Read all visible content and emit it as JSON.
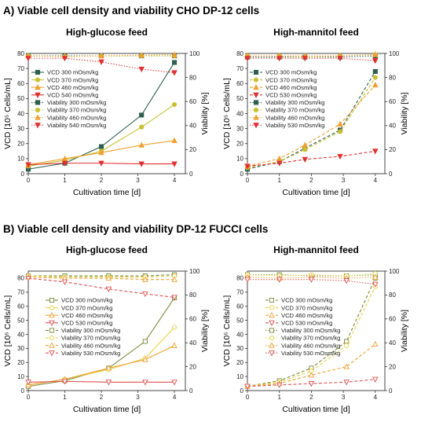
{
  "sections": [
    {
      "title": "A) Viable cell density and viability CHO DP-12 cells"
    },
    {
      "title": "B) Viable cell density and viability DP-12 FUCCI cells"
    }
  ],
  "chart_data": [
    {
      "type": "line",
      "title": "High-glucose feed",
      "xlabel": "Cultivation time [d]",
      "ylabel": "VCD [10⁵ Cells/mL]",
      "y2label": "Viability [%]",
      "xlim": [
        0,
        4.3
      ],
      "ylim": [
        0,
        80
      ],
      "y2lim": [
        0,
        100
      ],
      "xticks": [
        0,
        1,
        2,
        3,
        4
      ],
      "yticks": [
        0,
        10,
        20,
        30,
        40,
        50,
        60,
        70,
        80
      ],
      "y2ticks": [
        0,
        20,
        40,
        60,
        80,
        100
      ],
      "legend": "left",
      "series": [
        {
          "name": "VCD 300 mOsm/kg",
          "axis": "left",
          "color": "#2e5e4e",
          "marker": "square",
          "style": "solid",
          "fill": true,
          "x": [
            0,
            1,
            2,
            3.1,
            4
          ],
          "y": [
            3,
            7,
            18,
            39,
            74
          ]
        },
        {
          "name": "VCD 370 mOsm/kg",
          "axis": "left",
          "color": "#c8c030",
          "marker": "circle",
          "style": "solid",
          "fill": true,
          "x": [
            0,
            1,
            2,
            3.1,
            4
          ],
          "y": [
            5,
            9,
            15,
            31,
            46
          ]
        },
        {
          "name": "VCD 460 mOsm/kg",
          "axis": "left",
          "color": "#f0a030",
          "marker": "triangle-up",
          "style": "solid",
          "fill": true,
          "x": [
            0,
            1,
            2,
            3.1,
            4
          ],
          "y": [
            6,
            10,
            14,
            19,
            22
          ]
        },
        {
          "name": "VCD 540 mOsm/kg",
          "axis": "left",
          "color": "#e03030",
          "marker": "triangle-down",
          "style": "solid",
          "fill": true,
          "x": [
            0,
            1,
            2,
            3.1,
            4
          ],
          "y": [
            6,
            7,
            7,
            6.5,
            6.5
          ]
        },
        {
          "name": "Viability 300 mOsm/kg",
          "axis": "right",
          "color": "#2e5e4e",
          "marker": "square",
          "style": "dot",
          "fill": true,
          "x": [
            0,
            1,
            2,
            3.1,
            4
          ],
          "y": [
            98,
            98,
            98,
            98,
            98
          ]
        },
        {
          "name": "Viability 370 mOsm/kg",
          "axis": "right",
          "color": "#c8c030",
          "marker": "circle",
          "style": "dot",
          "fill": true,
          "x": [
            0,
            1,
            2,
            3.1,
            4
          ],
          "y": [
            98,
            97.5,
            98,
            98,
            98
          ]
        },
        {
          "name": "Viability 460 mOsm/kg",
          "axis": "right",
          "color": "#f0a030",
          "marker": "triangle-up",
          "style": "dot",
          "fill": true,
          "x": [
            0,
            1,
            2,
            3.1,
            4
          ],
          "y": [
            98,
            97.5,
            98,
            98.5,
            99
          ]
        },
        {
          "name": "Viability 540 mOsm/kg",
          "axis": "right",
          "color": "#e03030",
          "marker": "triangle-down",
          "style": "dot",
          "fill": true,
          "x": [
            0,
            1,
            2,
            3.1,
            4
          ],
          "y": [
            96,
            96,
            93,
            87,
            84
          ]
        }
      ]
    },
    {
      "type": "line",
      "title": "High-mannitol feed",
      "xlabel": "Cultivation time [d]",
      "ylabel": "VCD [10⁵ Cells/mL]",
      "y2label": "Viability [%]",
      "xlim": [
        0,
        4.3
      ],
      "ylim": [
        0,
        80
      ],
      "y2lim": [
        0,
        100
      ],
      "xticks": [
        0,
        1,
        2,
        3,
        4
      ],
      "yticks": [
        0,
        10,
        20,
        30,
        40,
        50,
        60,
        70,
        80
      ],
      "y2ticks": [
        0,
        20,
        40,
        60,
        80,
        100
      ],
      "legend": "left",
      "series": [
        {
          "name": "VCD 300 mOsm/kg",
          "axis": "left",
          "color": "#2e5e4e",
          "marker": "square",
          "style": "dash",
          "fill": true,
          "x": [
            0,
            1,
            1.8,
            2.9,
            4
          ],
          "y": [
            3,
            8,
            17,
            29,
            68
          ]
        },
        {
          "name": "VCD 370 mOsm/kg",
          "axis": "left",
          "color": "#c8c030",
          "marker": "circle",
          "style": "dash",
          "fill": true,
          "x": [
            0,
            1,
            1.8,
            2.9,
            4
          ],
          "y": [
            4,
            8,
            16,
            28,
            64
          ]
        },
        {
          "name": "VCD 460 mOsm/kg",
          "axis": "left",
          "color": "#f0a030",
          "marker": "triangle-up",
          "style": "dash",
          "fill": true,
          "x": [
            0,
            1,
            1.8,
            2.9,
            4
          ],
          "y": [
            5,
            10,
            19,
            33,
            59
          ]
        },
        {
          "name": "VCD 530 mOsm/kg",
          "axis": "left",
          "color": "#e03030",
          "marker": "triangle-down",
          "style": "dash",
          "fill": true,
          "x": [
            0,
            1,
            1.8,
            2.9,
            4
          ],
          "y": [
            5,
            7,
            9.5,
            11.5,
            15
          ]
        },
        {
          "name": "Viability 300 mOsm/kg",
          "axis": "right",
          "color": "#2e5e4e",
          "marker": "square",
          "style": "dot",
          "fill": true,
          "x": [
            0,
            1,
            1.8,
            2.9,
            4
          ],
          "y": [
            97,
            97,
            97,
            97,
            98
          ]
        },
        {
          "name": "Viability 370 mOsm/kg",
          "axis": "right",
          "color": "#c8c030",
          "marker": "circle",
          "style": "dot",
          "fill": true,
          "x": [
            0,
            1,
            1.8,
            2.9,
            4
          ],
          "y": [
            98,
            98,
            97,
            98,
            99
          ]
        },
        {
          "name": "Viability 460 mOsm/kg",
          "axis": "right",
          "color": "#f0a030",
          "marker": "triangle-up",
          "style": "dot",
          "fill": true,
          "x": [
            0,
            1,
            1.8,
            2.9,
            4
          ],
          "y": [
            98,
            98,
            98,
            98,
            99
          ]
        },
        {
          "name": "Viability 530 mOsm/kg",
          "axis": "right",
          "color": "#e03030",
          "marker": "triangle-down",
          "style": "dot",
          "fill": true,
          "x": [
            0,
            1,
            1.8,
            2.9,
            4
          ],
          "y": [
            96,
            96,
            96,
            96,
            94
          ]
        }
      ]
    },
    {
      "type": "line",
      "title": "High-glucose feed",
      "xlabel": "Cultivation time [d]",
      "ylabel": "VCD [10⁵ Cells/mL]",
      "y2label": "Viability [%]",
      "xlim": [
        0,
        4.3
      ],
      "ylim": [
        0,
        85
      ],
      "y2lim": [
        0,
        100
      ],
      "xticks": [
        0,
        1,
        2,
        3,
        4
      ],
      "yticks": [
        0,
        10,
        20,
        30,
        40,
        50,
        60,
        70,
        80
      ],
      "y2ticks": [
        0,
        20,
        40,
        60,
        80,
        100
      ],
      "legend": "left",
      "series": [
        {
          "name": "VCD 300 mOsm/kg",
          "axis": "left",
          "color": "#7a8a3a",
          "marker": "square",
          "style": "solid",
          "fill": false,
          "x": [
            0,
            1,
            2.2,
            3.2,
            4
          ],
          "y": [
            3,
            7,
            16,
            35,
            66
          ]
        },
        {
          "name": "VCD 370 mOsm/kg",
          "axis": "left",
          "color": "#e8d040",
          "marker": "circle",
          "style": "solid",
          "fill": false,
          "x": [
            0,
            1,
            2.2,
            3.2,
            4
          ],
          "y": [
            4,
            8,
            15,
            23,
            45
          ]
        },
        {
          "name": "VCD 460 mOsm/kg",
          "axis": "left",
          "color": "#f0a030",
          "marker": "triangle-up",
          "style": "solid",
          "fill": false,
          "x": [
            0,
            1,
            2.2,
            3.2,
            4
          ],
          "y": [
            4,
            8,
            16,
            22,
            32
          ]
        },
        {
          "name": "VCD 530 mOsm/kg",
          "axis": "left",
          "color": "#e05050",
          "marker": "triangle-down",
          "style": "solid",
          "fill": false,
          "x": [
            0,
            1,
            2.2,
            3.2,
            4
          ],
          "y": [
            6,
            6.5,
            6,
            6,
            6
          ]
        },
        {
          "name": "Viability 300 mOsm/kg",
          "axis": "right",
          "color": "#7a8a3a",
          "marker": "square",
          "style": "dash",
          "fill": false,
          "x": [
            0,
            1,
            2.2,
            3.2,
            4
          ],
          "y": [
            96,
            96,
            96,
            96,
            97
          ]
        },
        {
          "name": "Viability 370 mOsm/kg",
          "axis": "right",
          "color": "#e8d040",
          "marker": "circle",
          "style": "dash",
          "fill": false,
          "x": [
            0,
            1,
            2.2,
            3.2,
            4
          ],
          "y": [
            96,
            95,
            95,
            95,
            96
          ]
        },
        {
          "name": "Viability 460 mOsm/kg",
          "axis": "right",
          "color": "#f0a030",
          "marker": "triangle-up",
          "style": "dash",
          "fill": false,
          "x": [
            0,
            1,
            2.2,
            3.2,
            4
          ],
          "y": [
            95,
            94,
            94,
            93,
            93
          ]
        },
        {
          "name": "Viability 530 mOsm/kg",
          "axis": "right",
          "color": "#e05050",
          "marker": "triangle-down",
          "style": "dash",
          "fill": false,
          "x": [
            0,
            1,
            2.2,
            3.2,
            4
          ],
          "y": [
            94,
            91,
            85,
            81,
            78
          ]
        }
      ]
    },
    {
      "type": "line",
      "title": "High-mannitol feed",
      "xlabel": "Cultivation time [d]",
      "ylabel": "VCD [10⁵ Cells/mL]",
      "y2label": "Viability [%]",
      "xlim": [
        0,
        4.3
      ],
      "ylim": [
        0,
        85
      ],
      "y2lim": [
        0,
        100
      ],
      "xticks": [
        0,
        1,
        2,
        3,
        4
      ],
      "yticks": [
        0,
        10,
        20,
        30,
        40,
        50,
        60,
        70,
        80
      ],
      "y2ticks": [
        0,
        20,
        40,
        60,
        80,
        100
      ],
      "legend": "left",
      "series": [
        {
          "name": "VCD 300 mOsm/kg",
          "axis": "left",
          "color": "#7a8a3a",
          "marker": "square",
          "style": "dash",
          "fill": false,
          "x": [
            0,
            1,
            2,
            3.1,
            4
          ],
          "y": [
            3,
            7,
            16,
            35,
            80
          ]
        },
        {
          "name": "VCD 370 mOsm/kg",
          "axis": "left",
          "color": "#e8d040",
          "marker": "circle",
          "style": "dash",
          "fill": false,
          "x": [
            0,
            1,
            2,
            3.1,
            4
          ],
          "y": [
            3,
            6,
            14,
            32,
            74
          ]
        },
        {
          "name": "VCD 460 mOsm/kg",
          "axis": "left",
          "color": "#f0a030",
          "marker": "triangle-up",
          "style": "dash",
          "fill": false,
          "x": [
            0,
            1,
            2,
            3.1,
            4
          ],
          "y": [
            3,
            5,
            11,
            17,
            33
          ]
        },
        {
          "name": "VCD 530 mOsm/kg",
          "axis": "left",
          "color": "#e05050",
          "marker": "triangle-down",
          "style": "dash",
          "fill": false,
          "x": [
            0,
            1,
            2,
            3.1,
            4
          ],
          "y": [
            3,
            4,
            5,
            6,
            8
          ]
        },
        {
          "name": "Viability 300 mOsm/kg",
          "axis": "right",
          "color": "#7a8a3a",
          "marker": "square",
          "style": "dot",
          "fill": false,
          "x": [
            0,
            1,
            2,
            3.1,
            4
          ],
          "y": [
            97,
            97,
            96,
            96,
            97
          ]
        },
        {
          "name": "Viability 370 mOsm/kg",
          "axis": "right",
          "color": "#e8d040",
          "marker": "circle",
          "style": "dot",
          "fill": false,
          "x": [
            0,
            1,
            2,
            3.1,
            4
          ],
          "y": [
            97,
            96,
            97,
            96,
            98
          ]
        },
        {
          "name": "Viability 460 mOsm/kg",
          "axis": "right",
          "color": "#f0a030",
          "marker": "triangle-up",
          "style": "dot",
          "fill": false,
          "x": [
            0,
            1,
            2,
            3.1,
            4
          ],
          "y": [
            95,
            94,
            95,
            94,
            95
          ]
        },
        {
          "name": "Viability 530 mOsm/kg",
          "axis": "right",
          "color": "#e05050",
          "marker": "triangle-down",
          "style": "dot",
          "fill": false,
          "x": [
            0,
            1,
            2,
            3.1,
            4
          ],
          "y": [
            93,
            93,
            93,
            92,
            89
          ]
        }
      ]
    }
  ]
}
